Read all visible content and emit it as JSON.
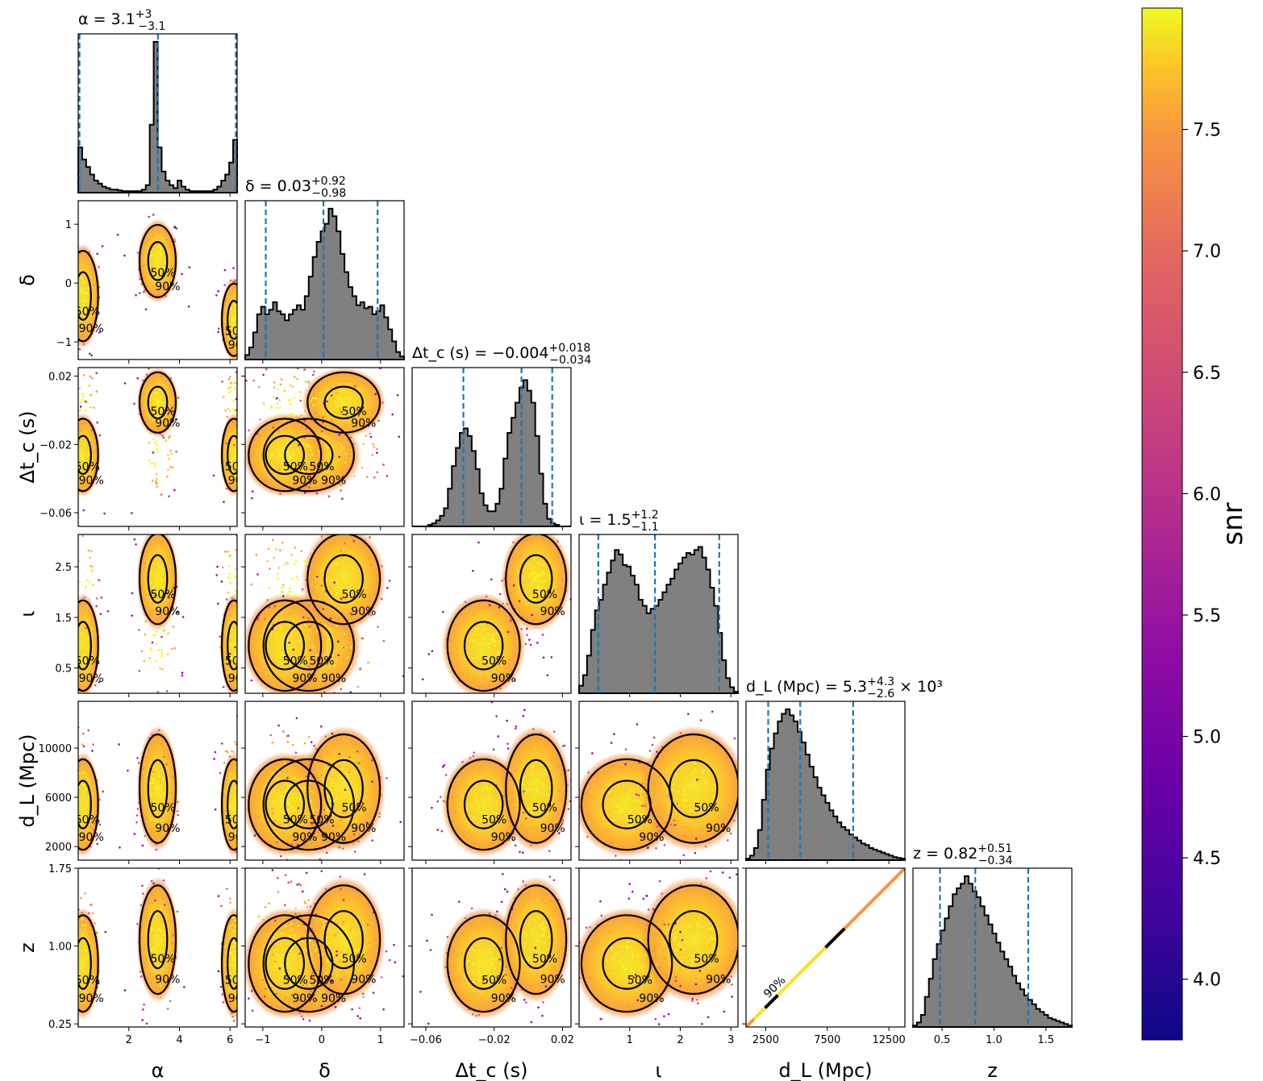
{
  "chart_data": {
    "type": "corner",
    "parameters": [
      {
        "key": "alpha",
        "axis_label": "α",
        "range": [
          0.0,
          6.28
        ],
        "ticks": [
          2,
          4,
          6
        ],
        "tick_labels": [
          "2",
          "4",
          "6"
        ],
        "title": "α = 3.1",
        "title_sup": "+3",
        "title_sub": "−3.1",
        "title_suffix": "",
        "quantiles": [
          0.05,
          3.15,
          6.23
        ]
      },
      {
        "key": "delta",
        "axis_label": "δ",
        "range": [
          -1.3,
          1.4
        ],
        "ticks": [
          -1,
          0,
          1
        ],
        "tick_labels": [
          "−1",
          "0",
          "1"
        ],
        "title": "δ = 0.03",
        "title_sup": "+0.92",
        "title_sub": "−0.98",
        "title_suffix": "",
        "quantiles": [
          -0.95,
          0.03,
          0.95
        ]
      },
      {
        "key": "dtc",
        "axis_label": "Δt_c (s)",
        "range": [
          -0.068,
          0.025
        ],
        "ticks": [
          -0.06,
          -0.02,
          0.02
        ],
        "tick_labels": [
          "−0.06",
          "−0.02",
          "0.02"
        ],
        "title": "Δt_c (s) = −0.004",
        "title_sup": "+0.018",
        "title_sub": "−0.034",
        "title_suffix": "",
        "quantiles": [
          -0.038,
          -0.004,
          0.014
        ]
      },
      {
        "key": "iota",
        "axis_label": "ι",
        "range": [
          0.0,
          3.14
        ],
        "ticks": [
          1,
          2,
          3
        ],
        "tick_labels": [
          "1",
          "2",
          "3"
        ],
        "title": "ι = 1.5",
        "title_sup": "+1.2",
        "title_sub": "−1.1",
        "title_suffix": "",
        "quantiles": [
          0.38,
          1.5,
          2.77
        ]
      },
      {
        "key": "dL",
        "axis_label": "d_L (Mpc)",
        "range": [
          900,
          13800
        ],
        "ticks": [
          2500,
          7500,
          12500
        ],
        "tick_labels": [
          "2500",
          "7500",
          "12500"
        ],
        "title": "d_L (Mpc) = 5.3",
        "title_sup": "+4.3",
        "title_sub": "−2.6",
        "title_suffix": "× 10³",
        "quantiles": [
          2700,
          5300,
          9600
        ]
      },
      {
        "key": "z",
        "axis_label": "z",
        "range": [
          0.22,
          1.75
        ],
        "ticks": [
          0.5,
          1.0,
          1.5
        ],
        "tick_labels": [
          "0.5",
          "1.0",
          "1.5"
        ],
        "title": "z = 0.82",
        "title_sup": "+0.51",
        "title_sub": "−0.34",
        "title_suffix": "",
        "quantiles": [
          0.48,
          0.82,
          1.33
        ]
      }
    ],
    "y_ticks": {
      "delta": {
        "values": [
          -1,
          0,
          1
        ],
        "labels": [
          "−1",
          "0",
          "1"
        ]
      },
      "dtc": {
        "values": [
          -0.06,
          -0.02,
          0.02
        ],
        "labels": [
          "−0.06",
          "−0.02",
          "0.02"
        ]
      },
      "iota": {
        "values": [
          0.5,
          1.5,
          2.5
        ],
        "labels": [
          "0.5",
          "1.5",
          "2.5"
        ]
      },
      "dL": {
        "values": [
          2000,
          6000,
          10000
        ],
        "labels": [
          "2000",
          "6000",
          "10000"
        ]
      },
      "z": {
        "values": [
          0.25,
          1.0,
          1.75
        ],
        "labels": [
          "0.25",
          "1.00",
          "1.75"
        ]
      }
    },
    "histograms": {
      "alpha": [
        0.3,
        0.22,
        0.17,
        0.12,
        0.08,
        0.06,
        0.04,
        0.03,
        0.02,
        0.02,
        0.015,
        0.01,
        0.01,
        0.01,
        0.01,
        0.01,
        0.02,
        0.05,
        0.45,
        1.0,
        0.3,
        0.14,
        0.08,
        0.05,
        0.03,
        0.08,
        0.04,
        0.02,
        0.01,
        0.01,
        0.01,
        0.01,
        0.01,
        0.01,
        0.02,
        0.04,
        0.08,
        0.12,
        0.2,
        0.35
      ],
      "delta": [
        0.03,
        0.08,
        0.18,
        0.3,
        0.35,
        0.3,
        0.33,
        0.38,
        0.32,
        0.3,
        0.26,
        0.3,
        0.33,
        0.36,
        0.33,
        0.42,
        0.55,
        0.68,
        0.78,
        0.85,
        0.9,
        1.0,
        0.95,
        0.85,
        0.7,
        0.58,
        0.48,
        0.42,
        0.36,
        0.38,
        0.34,
        0.35,
        0.3,
        0.32,
        0.36,
        0.28,
        0.2,
        0.12,
        0.05,
        0.02
      ],
      "dtc": [
        0.0,
        0.0,
        0.0,
        0.0,
        0.01,
        0.02,
        0.04,
        0.07,
        0.12,
        0.25,
        0.4,
        0.52,
        0.62,
        0.65,
        0.6,
        0.5,
        0.38,
        0.22,
        0.14,
        0.1,
        0.1,
        0.15,
        0.25,
        0.45,
        0.62,
        0.72,
        0.82,
        0.92,
        0.97,
        0.9,
        0.82,
        0.6,
        0.35,
        0.15,
        0.05,
        0.02,
        0.01,
        0.0,
        0.0,
        0.0
      ],
      "iota": [
        0.05,
        0.12,
        0.25,
        0.42,
        0.55,
        0.62,
        0.72,
        0.8,
        0.88,
        0.95,
        0.92,
        0.85,
        0.84,
        0.78,
        0.72,
        0.62,
        0.58,
        0.53,
        0.56,
        0.58,
        0.62,
        0.67,
        0.72,
        0.76,
        0.82,
        0.86,
        0.9,
        0.93,
        0.92,
        0.95,
        0.97,
        0.9,
        0.82,
        0.7,
        0.58,
        0.4,
        0.22,
        0.1,
        0.04,
        0.01
      ],
      "dL": [
        0.01,
        0.03,
        0.08,
        0.2,
        0.4,
        0.6,
        0.74,
        0.84,
        0.92,
        0.97,
        1.0,
        0.96,
        0.92,
        0.85,
        0.78,
        0.7,
        0.62,
        0.55,
        0.48,
        0.43,
        0.38,
        0.33,
        0.29,
        0.25,
        0.22,
        0.2,
        0.17,
        0.15,
        0.13,
        0.11,
        0.1,
        0.08,
        0.07,
        0.06,
        0.05,
        0.04,
        0.03,
        0.02,
        0.015,
        0.01
      ],
      "z": [
        0.01,
        0.03,
        0.08,
        0.2,
        0.32,
        0.45,
        0.55,
        0.64,
        0.72,
        0.8,
        0.88,
        0.92,
        0.95,
        1.0,
        0.95,
        0.9,
        0.86,
        0.8,
        0.74,
        0.68,
        0.62,
        0.56,
        0.5,
        0.45,
        0.4,
        0.34,
        0.29,
        0.25,
        0.21,
        0.18,
        0.15,
        0.12,
        0.1,
        0.08,
        0.06,
        0.05,
        0.04,
        0.03,
        0.02,
        0.01
      ]
    },
    "contour_levels": [
      "50%",
      "90%"
    ],
    "colorbar": {
      "label": "snr",
      "range": [
        3.75,
        8.0
      ],
      "ticks": [
        4.0,
        4.5,
        5.0,
        5.5,
        6.0,
        6.5,
        7.0,
        7.5
      ],
      "tick_labels": [
        "4.0",
        "4.5",
        "5.0",
        "5.5",
        "6.0",
        "6.5",
        "7.0",
        "7.5"
      ],
      "colormap": "plasma"
    },
    "colors": {
      "hist_fill": "#808080",
      "hist_edge": "#000000",
      "quantile_line": "#1f77b4",
      "contour": "#000000"
    }
  }
}
